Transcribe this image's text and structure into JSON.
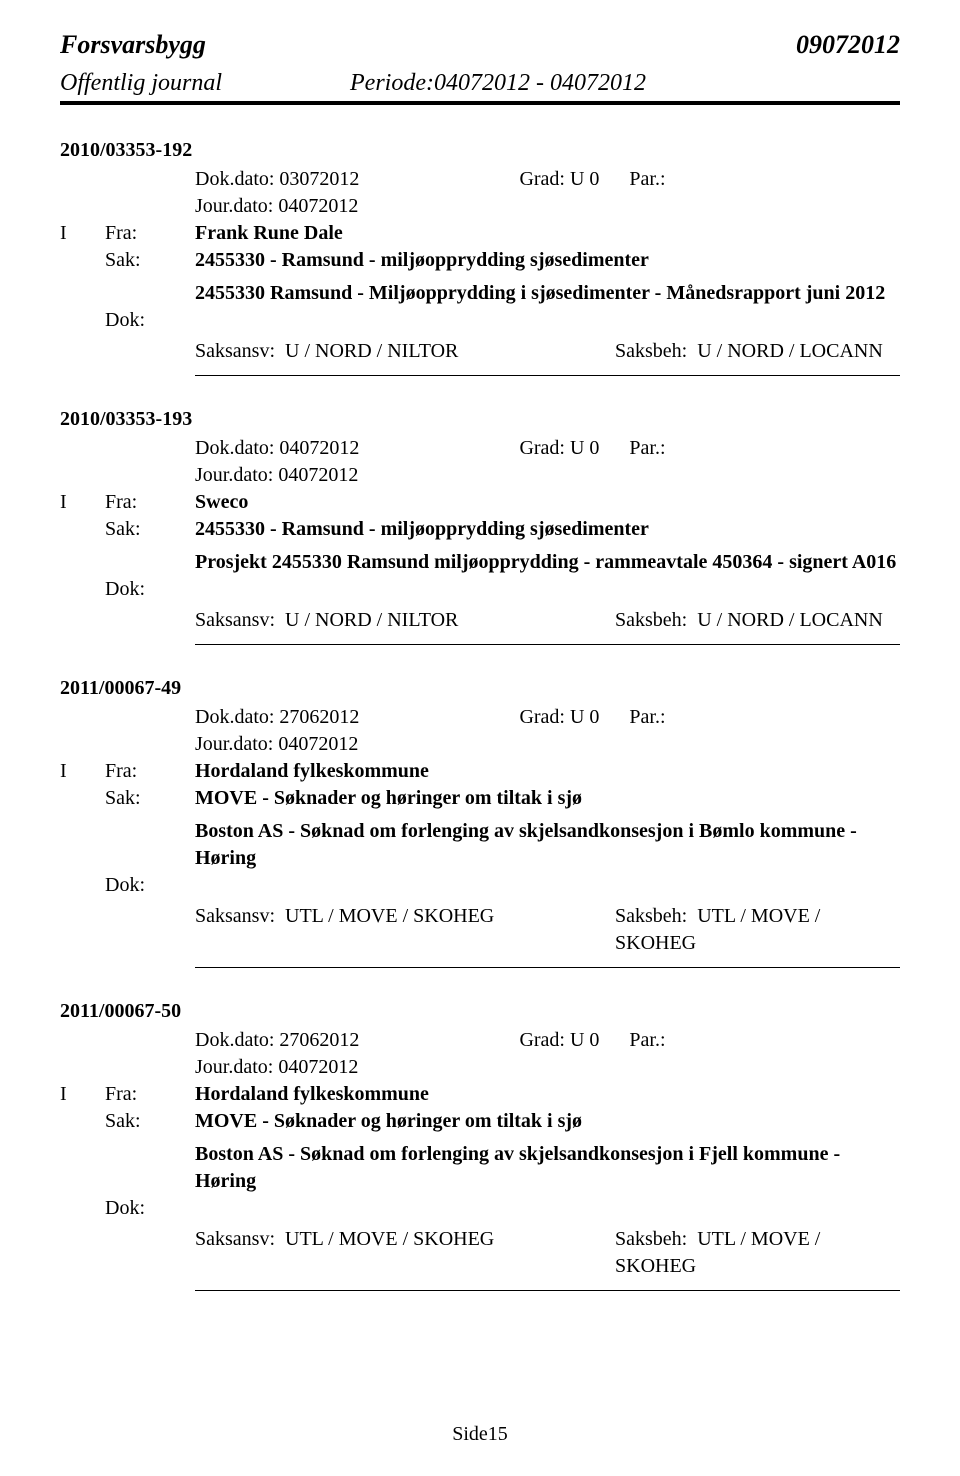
{
  "header": {
    "org": "Forsvarsbygg",
    "date": "09072012",
    "journal_label": "Offentlig journal",
    "periode_label": "Periode:",
    "periode_value": "04072012 - 04072012"
  },
  "labels": {
    "dok_dato": "Dok.dato:",
    "jour_dato": "Jour.dato:",
    "grad": "Grad:",
    "par": "Par.:",
    "fra": "Fra:",
    "sak": "Sak:",
    "dok": "Dok:",
    "saksansv": "Saksansv:",
    "saksbeh": "Saksbeh:"
  },
  "entries": [
    {
      "case_id": "2010/03353-192",
      "dok_dato": "03072012",
      "grad": "U 0",
      "par": "",
      "jour_dato": "04072012",
      "io": "I",
      "fra": "Frank Rune Dale",
      "sak": "2455330 - Ramsund - miljøopprydding sjøsedimenter",
      "desc": "2455330 Ramsund - Miljøopprydding i sjøsedimenter - Månedsrapport juni 2012",
      "saksansv": "U / NORD / NILTOR",
      "saksbeh": "U / NORD / LOCANN"
    },
    {
      "case_id": "2010/03353-193",
      "dok_dato": "04072012",
      "grad": "U 0",
      "par": "",
      "jour_dato": "04072012",
      "io": "I",
      "fra": "Sweco",
      "sak": "2455330 - Ramsund - miljøopprydding sjøsedimenter",
      "desc": "Prosjekt 2455330 Ramsund miljøopprydding - rammeavtale 450364 - signert A016",
      "saksansv": "U / NORD / NILTOR",
      "saksbeh": "U / NORD / LOCANN"
    },
    {
      "case_id": "2011/00067-49",
      "dok_dato": "27062012",
      "grad": "U 0",
      "par": "",
      "jour_dato": "04072012",
      "io": "I",
      "fra": "Hordaland fylkeskommune",
      "sak": "MOVE - Søknader og høringer om tiltak i sjø",
      "desc": "Boston AS - Søknad om forlenging av skjelsandkonsesjon i Bømlo kommune - Høring",
      "saksansv": "UTL / MOVE / SKOHEG",
      "saksbeh": "UTL / MOVE / SKOHEG"
    },
    {
      "case_id": "2011/00067-50",
      "dok_dato": "27062012",
      "grad": "U 0",
      "par": "",
      "jour_dato": "04072012",
      "io": "I",
      "fra": "Hordaland fylkeskommune",
      "sak": "MOVE - Søknader og høringer om tiltak i sjø",
      "desc": "Boston AS - Søknad om forlenging av skjelsandkonsesjon i Fjell kommune - Høring",
      "saksansv": "UTL / MOVE / SKOHEG",
      "saksbeh": "UTL / MOVE / SKOHEG"
    }
  ],
  "footer": {
    "page": "Side15"
  }
}
